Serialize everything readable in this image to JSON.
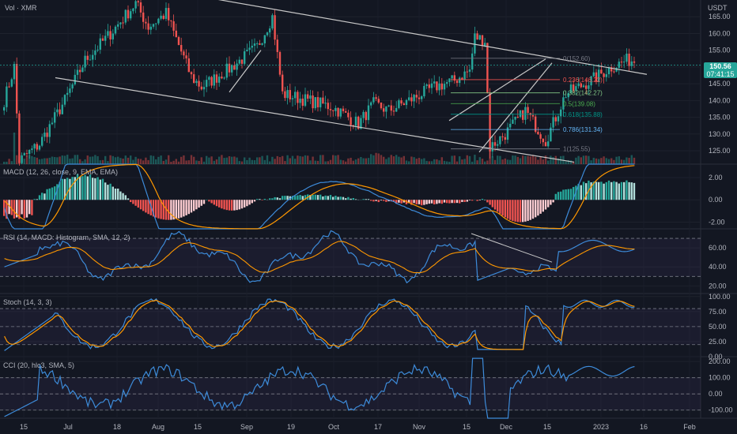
{
  "header": {
    "vol_label": "Vol · XMR",
    "currency": "USDT"
  },
  "price": {
    "last": "150.56",
    "countdown": "07:41:15"
  },
  "colors": {
    "up": "#26a69a",
    "down": "#ef5350",
    "blue": "#2962ff",
    "orange": "#ff9800",
    "line_blue": "#3d8bd9"
  },
  "chart_data": [
    {
      "type": "candlestick",
      "title": "",
      "y_ticks": [
        125,
        130,
        135,
        140,
        145,
        150,
        155,
        160,
        165
      ],
      "y_tick_labels": [
        "125.00",
        "130.00",
        "135.00",
        "140.00",
        "145.00",
        "150.00",
        "155.00",
        "160.00",
        "165.00"
      ],
      "ylim": [
        121,
        170
      ],
      "x_tick_labels": [
        "15",
        "Jul",
        "18",
        "Aug",
        "15",
        "Sep",
        "19",
        "Oct",
        "17",
        "Nov",
        "15",
        "Dec",
        "15",
        "2023",
        "16",
        "Feb"
      ],
      "close_path": [
        [
          0,
          140
        ],
        [
          4,
          150
        ],
        [
          6,
          122
        ],
        [
          14,
          127
        ],
        [
          24,
          140
        ],
        [
          32,
          152
        ],
        [
          42,
          160
        ],
        [
          52,
          169
        ],
        [
          57,
          162
        ],
        [
          64,
          166
        ],
        [
          74,
          147
        ],
        [
          78,
          144
        ],
        [
          90,
          150
        ],
        [
          100,
          156
        ],
        [
          106,
          165
        ],
        [
          110,
          142
        ],
        [
          120,
          140
        ],
        [
          130,
          138
        ],
        [
          140,
          133
        ],
        [
          146,
          139
        ],
        [
          152,
          137
        ],
        [
          160,
          140
        ],
        [
          170,
          144
        ],
        [
          178,
          146
        ],
        [
          184,
          149
        ],
        [
          186,
          159
        ],
        [
          190,
          158
        ],
        [
          192,
          126
        ],
        [
          198,
          130
        ],
        [
          206,
          137
        ],
        [
          214,
          128
        ],
        [
          222,
          142
        ],
        [
          232,
          146
        ],
        [
          240,
          150
        ],
        [
          246,
          152
        ]
      ],
      "fibonacci": [
        {
          "ratio": "0",
          "price": 152.6,
          "label": "0(152.60)"
        },
        {
          "ratio": "0.236",
          "price": 146.22,
          "label": "0.236(146.22)"
        },
        {
          "ratio": "0.382",
          "price": 142.27,
          "label": "0.382(142.27)"
        },
        {
          "ratio": "0.5",
          "price": 139.08,
          "label": "0.5(139.08)"
        },
        {
          "ratio": "0.618",
          "price": 135.88,
          "label": "0.618(135.88)"
        },
        {
          "ratio": "0.786",
          "price": 131.34,
          "label": "0.786(131.34)"
        },
        {
          "ratio": "1",
          "price": 125.55,
          "label": "1(125.55)"
        }
      ],
      "volume_label": "Vol · XMR"
    },
    {
      "type": "bar",
      "title": "MACD (12, 26, close, 9, EMA, EMA)",
      "y_tick_labels": [
        "2.00",
        "0.00",
        "-2.00"
      ],
      "y_ticks": [
        2,
        0,
        -2
      ],
      "ylim": [
        -2.6,
        3.2
      ]
    },
    {
      "type": "line",
      "title": "RSI (14, MACD: Histogram, SMA, 12, 2)",
      "y_tick_labels": [
        "60.00",
        "40.00",
        "20.00"
      ],
      "y_ticks": [
        60,
        40,
        20
      ],
      "ylim": [
        12,
        80
      ],
      "guides": [
        70,
        30
      ]
    },
    {
      "type": "line",
      "title": "Stoch (14, 3, 3)",
      "y_tick_labels": [
        "100.00",
        "75.00",
        "50.00",
        "25.00",
        "0.00"
      ],
      "y_ticks": [
        100,
        75,
        50,
        25,
        0
      ],
      "ylim": [
        0,
        105
      ],
      "guides": [
        80,
        20
      ]
    },
    {
      "type": "line",
      "title": "CCI (20, hlc3, SMA, 5)",
      "y_tick_labels": [
        "200.00",
        "100.00",
        "0.00",
        "-100.00"
      ],
      "y_ticks": [
        200,
        100,
        0,
        -100
      ],
      "ylim": [
        -150,
        230
      ],
      "guides": [
        100,
        -100
      ]
    }
  ]
}
